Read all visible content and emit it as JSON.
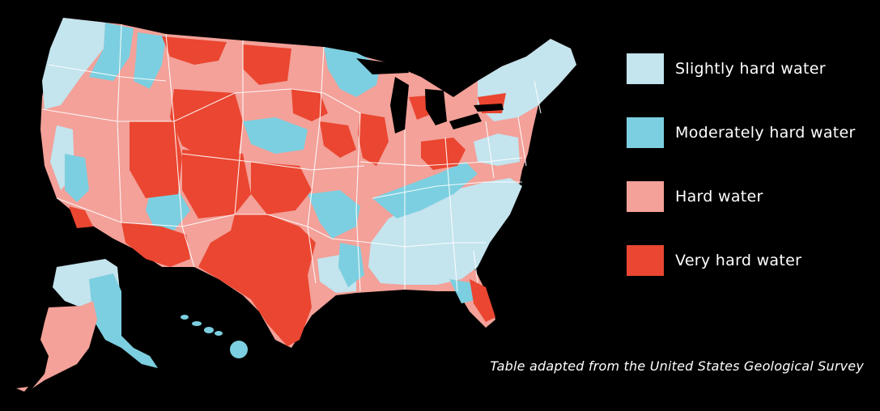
{
  "colors": {
    "slightly_hard": "#c4e4ee",
    "moderately_hard": "#7ccfe0",
    "hard": "#f3a199",
    "very_hard": "#ea4631",
    "borders": "#ffffff",
    "background": "#000000"
  },
  "legend": [
    {
      "label": "Slightly hard water",
      "color": "#c4e4ee"
    },
    {
      "label": "Moderately hard water",
      "color": "#7ccfe0"
    },
    {
      "label": "Hard water",
      "color": "#f3a199"
    },
    {
      "label": "Very hard water",
      "color": "#ea4631"
    }
  ],
  "caption": "Table adapted from the United States Geological Survey"
}
